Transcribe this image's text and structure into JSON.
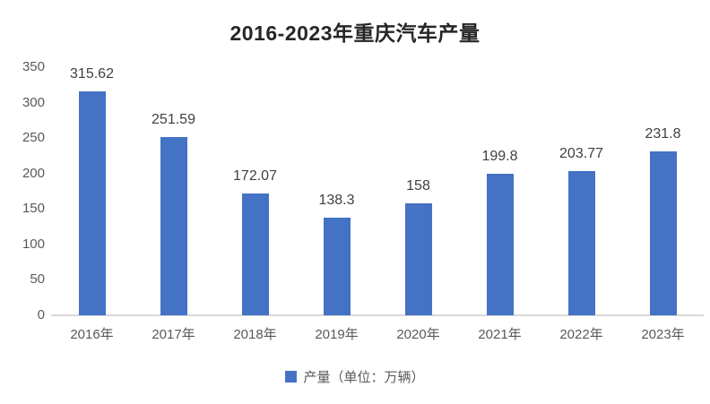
{
  "chart_data": {
    "type": "bar",
    "title": "2016-2023年重庆汽车产量",
    "categories": [
      "2016年",
      "2017年",
      "2018年",
      "2019年",
      "2020年",
      "2021年",
      "2022年",
      "2023年"
    ],
    "values": [
      315.62,
      251.59,
      172.07,
      138.3,
      158,
      199.8,
      203.77,
      231.8
    ],
    "value_labels": [
      "315.62",
      "251.59",
      "172.07",
      "138.3",
      "158",
      "199.8",
      "203.77",
      "231.8"
    ],
    "legend_label": "产量（单位：万辆）",
    "xlabel": "",
    "ylabel": "",
    "ylim": [
      0,
      350
    ],
    "yticks": [
      0,
      50,
      100,
      150,
      200,
      250,
      300,
      350
    ],
    "grid": false,
    "legend_position": "bottom",
    "bar_color": "#4472C4",
    "axis_line_color": "#D9D9D9",
    "title_color": "#262626",
    "tick_color": "#595959",
    "data_label_color": "#404040"
  }
}
